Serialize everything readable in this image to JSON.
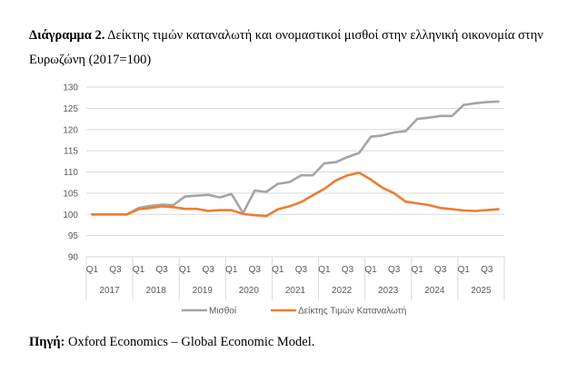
{
  "caption": {
    "label": "Διάγραμμα 2.",
    "text": " Δείκτης τιμών καταναλωτή και ονομαστικοί μισθοί στην ελληνική οικονομία στην Ευρωζώνη (2017=100)"
  },
  "source": {
    "label": "Πηγή:",
    "text": " Oxford Economics – Global Economic Model."
  },
  "chart_data": {
    "type": "line",
    "title": "Διάγραμμα 2. Δείκτης τιμών καταναλωτή και ονομαστικοί μισθοί στην ελληνική οικονομία στην Ευρωζώνη (2017=100)",
    "xlabel": "",
    "ylabel": "",
    "ylim": [
      90,
      130
    ],
    "yticks": [
      90,
      95,
      100,
      105,
      110,
      115,
      120,
      125,
      130
    ],
    "years": [
      "2017",
      "2018",
      "2019",
      "2020",
      "2021",
      "2022",
      "2023",
      "2024",
      "2025"
    ],
    "quarter_labels": [
      "Q1",
      "Q3"
    ],
    "grid": true,
    "legend_position": "bottom",
    "series": [
      {
        "name": "Μισθοί",
        "color": "#a5a5a5",
        "values": [
          100,
          100,
          100,
          100,
          101.5,
          102,
          102.3,
          102.2,
          104.2,
          104.4,
          104.6,
          104.0,
          104.8,
          100.3,
          105.6,
          105.3,
          107.2,
          107.6,
          109.2,
          109.2,
          112.0,
          112.3,
          113.5,
          114.5,
          118.3,
          118.6,
          119.3,
          119.6,
          122.5,
          122.8,
          123.2,
          123.2,
          125.8,
          126.2,
          126.5,
          126.6
        ]
      },
      {
        "name": "Δείκτης Τιμών Καταναλωτή",
        "color": "#ed7d31",
        "values": [
          100,
          100,
          100,
          100,
          101.2,
          101.5,
          101.9,
          101.7,
          101.3,
          101.3,
          100.8,
          101.0,
          101.0,
          100.1,
          99.8,
          99.6,
          101.2,
          101.9,
          102.9,
          104.5,
          106.0,
          108.0,
          109.2,
          109.8,
          108.2,
          106.3,
          105.0,
          103.0,
          102.6,
          102.2,
          101.5,
          101.2,
          100.9,
          100.8,
          101.0,
          101.2
        ]
      }
    ]
  }
}
